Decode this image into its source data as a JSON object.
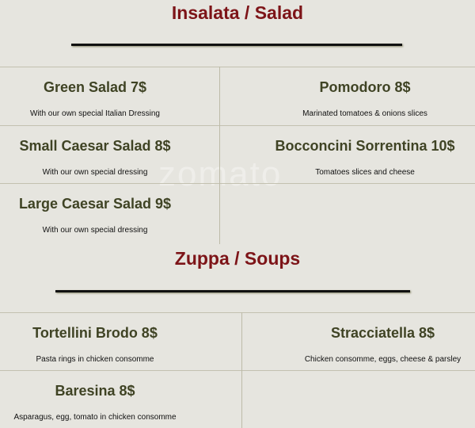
{
  "watermark": "zomato",
  "colors": {
    "background": "#e6e5df",
    "section_title": "#7d1418",
    "item_name": "#3f4324"
  },
  "salad": {
    "title": "Insalata / Salad",
    "items": [
      {
        "name": "Green Salad 7$",
        "desc": "With our own special Italian Dressing"
      },
      {
        "name": "Pomodoro 8$",
        "desc": "Marinated tomatoes & onions slices"
      },
      {
        "name": "Small Caesar Salad 8$",
        "desc": "With our own special dressing"
      },
      {
        "name": "Bocconcini Sorrentina 10$",
        "desc": "Tomatoes slices and cheese"
      },
      {
        "name": "Large Caesar Salad 9$",
        "desc": "With our own special dressing"
      }
    ]
  },
  "soups": {
    "title": "Zuppa / Soups",
    "items": [
      {
        "name": "Tortellini Brodo 8$",
        "desc": "Pasta rings in chicken consomme"
      },
      {
        "name": "Stracciatella 8$",
        "desc": "Chicken consomme, eggs, cheese & parsley"
      },
      {
        "name": "Baresina 8$",
        "desc": "Asparagus, egg, tomato in chicken consomme"
      }
    ]
  }
}
